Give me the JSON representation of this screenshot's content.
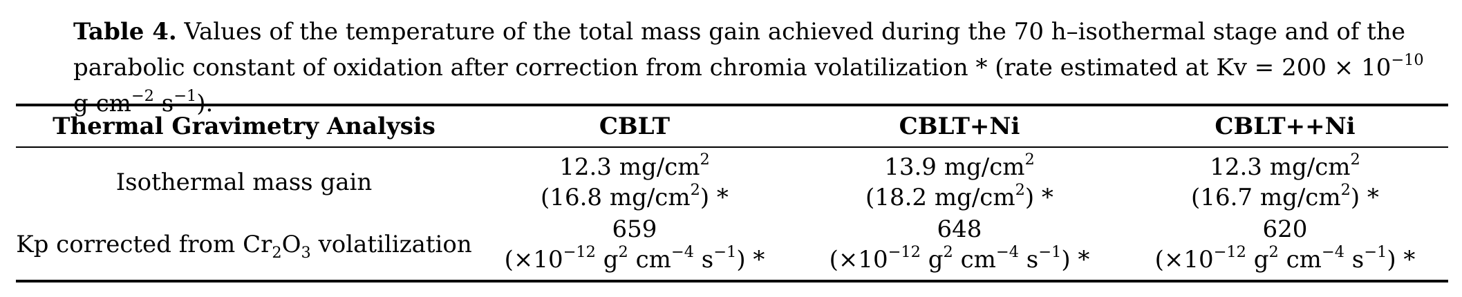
{
  "caption": {
    "label": "Table 4.",
    "text_part1": "Values of the temperature of the total mass gain achieved during the 70 h–isothermal stage and of the parabolic constant of oxidation after correction from chromia volatilization * (rate estimated at Kv = 200 × 10",
    "exp_minus10": "−10",
    "text_part2": " g cm",
    "exp_minus2": "−2",
    "text_part3": " s",
    "exp_minus1": "−1",
    "text_part4": ")."
  },
  "table": {
    "headers": [
      "Thermal Gravimetry Analysis",
      "CBLT",
      "CBLT+Ni",
      "CBLT++Ni"
    ],
    "rows": [
      {
        "label": "Isothermal mass gain",
        "values": [
          {
            "main": "12.3",
            "corrected": "16.8"
          },
          {
            "main": "13.9",
            "corrected": "18.2"
          },
          {
            "main": "12.3",
            "corrected": "16.7"
          }
        ]
      },
      {
        "label_pre": "Kp corrected from Cr",
        "label_sub1": "2",
        "label_mid": "O",
        "label_sub2": "3",
        "label_post": " volatilization",
        "values": [
          {
            "main": "659"
          },
          {
            "main": "648"
          },
          {
            "main": "620"
          }
        ]
      }
    ],
    "mass_unit": " mg/cm",
    "mass_unit_exp": "2",
    "kp_unit_pre": "(×10",
    "kp_unit_exp1": "−12",
    "kp_unit_g": " g",
    "kp_unit_exp2": "2",
    "kp_unit_cm": " cm",
    "kp_unit_exp3": "−4",
    "kp_unit_s": " s",
    "kp_unit_exp4": "−1",
    "kp_unit_post": ") *",
    "paren_open": "(",
    "paren_close_star": ") *"
  }
}
